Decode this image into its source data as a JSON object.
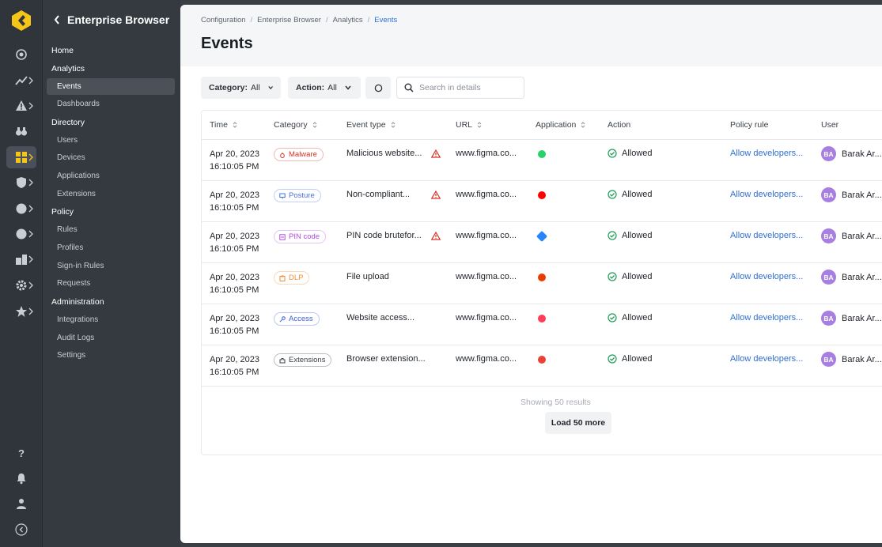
{
  "colors": {
    "accent": "#f5c518",
    "link": "#2f6fd6",
    "success": "#1f9d55",
    "danger": "#d93025"
  },
  "rail": {
    "icons": [
      "logo-icon",
      "home-icon",
      "analytics-icon",
      "alert-icon",
      "binoculars-icon",
      "apps-icon",
      "shield-icon",
      "circle-icon",
      "circle-icon",
      "devices-icon",
      "gear-icon",
      "star-icon"
    ],
    "bottom": [
      "help-icon",
      "bell-icon",
      "user-icon",
      "collapse-icon"
    ],
    "help_label": "?"
  },
  "nav": {
    "title": "Enterprise Browser",
    "items": [
      {
        "label": "Home",
        "section": true
      },
      {
        "label": "Analytics",
        "section": true
      },
      {
        "label": "Events",
        "section": false,
        "active": true
      },
      {
        "label": "Dashboards",
        "section": false
      },
      {
        "label": "Directory",
        "section": true
      },
      {
        "label": "Users",
        "section": false
      },
      {
        "label": "Devices",
        "section": false
      },
      {
        "label": "Applications",
        "section": false
      },
      {
        "label": "Extensions",
        "section": false
      },
      {
        "label": "Policy",
        "section": true
      },
      {
        "label": "Rules",
        "section": false
      },
      {
        "label": "Profiles",
        "section": false
      },
      {
        "label": "Sign-in Rules",
        "section": false
      },
      {
        "label": "Requests",
        "section": false
      },
      {
        "label": "Administration",
        "section": true
      },
      {
        "label": "Integrations",
        "section": false
      },
      {
        "label": "Audit Logs",
        "section": false
      },
      {
        "label": "Settings",
        "section": false
      }
    ]
  },
  "breadcrumb": [
    "Configuration",
    "Enterprise Browser",
    "Analytics",
    "Events"
  ],
  "page_title": "Events",
  "filters": {
    "category_label": "Category:",
    "category_value": "All",
    "action_label": "Action:",
    "action_value": "All",
    "search_placeholder": "Search in details"
  },
  "columns": [
    "Time",
    "Category",
    "Event type",
    "URL",
    "Application",
    "Action",
    "Policy rule",
    "User"
  ],
  "rows": [
    {
      "date": "Apr 20, 2023",
      "time": "16:10:05 PM",
      "category": "Malware",
      "cat_icon": "bug-icon",
      "cat_color": "#d93025",
      "event": "Malicious website...",
      "warn": true,
      "url": "www.figma.co...",
      "app_icon": "whatsapp-icon",
      "app_color": "#25d366",
      "action": "Allowed",
      "policy": "Allow developers...",
      "avatar": "BA",
      "user": "Barak Ar..."
    },
    {
      "date": "Apr 20, 2023",
      "time": "16:10:05 PM",
      "category": "Posture",
      "cat_icon": "monitor-icon",
      "cat_color": "#4a6fe0",
      "event": "Non-compliant...",
      "warn": true,
      "url": "www.figma.co...",
      "app_icon": "youtube-icon",
      "app_color": "#ff0000",
      "action": "Allowed",
      "policy": "Allow developers...",
      "avatar": "BA",
      "user": "Barak Ar..."
    },
    {
      "date": "Apr 20, 2023",
      "time": "16:10:05 PM",
      "category": "PIN code",
      "cat_icon": "keypad-icon",
      "cat_color": "#b04de0",
      "event": "PIN code brutefor...",
      "warn": true,
      "url": "www.figma.co...",
      "app_icon": "jira-icon",
      "app_color": "#2684ff",
      "action": "Allowed",
      "policy": "Allow developers...",
      "avatar": "BA",
      "user": "Barak Ar..."
    },
    {
      "date": "Apr 20, 2023",
      "time": "16:10:05 PM",
      "category": "DLP",
      "cat_icon": "clipboard-icon",
      "cat_color": "#e8913a",
      "event": "File upload",
      "warn": false,
      "url": "www.figma.co...",
      "app_icon": "office-icon",
      "app_color": "#eb3c00",
      "action": "Allowed",
      "policy": "Allow developers...",
      "avatar": "BA",
      "user": "Barak Ar..."
    },
    {
      "date": "Apr 20, 2023",
      "time": "16:10:05 PM",
      "category": "Access",
      "cat_icon": "key-icon",
      "cat_color": "#3a5ed8",
      "event": "Website access...",
      "warn": false,
      "url": "www.figma.co...",
      "app_icon": "monday-icon",
      "app_color": "#ff3d57",
      "action": "Allowed",
      "policy": "Allow developers...",
      "avatar": "BA",
      "user": "Barak Ar..."
    },
    {
      "date": "Apr 20, 2023",
      "time": "16:10:05 PM",
      "category": "Extensions",
      "cat_icon": "puzzle-icon",
      "cat_color": "#3a4048",
      "event": "Browser extension...",
      "warn": false,
      "url": "www.figma.co...",
      "app_icon": "gmail-icon",
      "app_color": "#ea4335",
      "action": "Allowed",
      "policy": "Allow developers...",
      "avatar": "BA",
      "user": "Barak Ar..."
    }
  ],
  "footer": {
    "showing": "Showing 50 results",
    "load_more": "Load 50 more"
  }
}
